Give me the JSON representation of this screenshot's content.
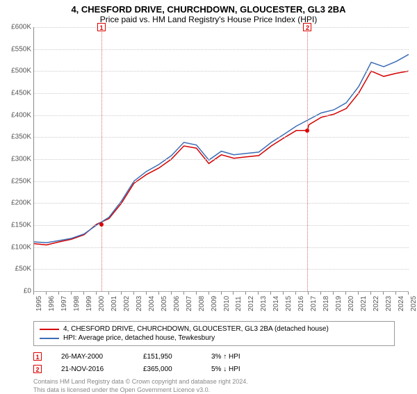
{
  "header": {
    "title": "4, CHESFORD DRIVE, CHURCHDOWN, GLOUCESTER, GL3 2BA",
    "subtitle": "Price paid vs. HM Land Registry's House Price Index (HPI)"
  },
  "chart": {
    "type": "line",
    "ylim": [
      0,
      600000
    ],
    "ytick_step": 50000,
    "y_prefix": "£",
    "y_suffix": "K",
    "xlim": [
      1995,
      2025
    ],
    "xticks": [
      1995,
      1996,
      1997,
      1998,
      1999,
      2000,
      2001,
      2002,
      2003,
      2004,
      2005,
      2006,
      2007,
      2008,
      2009,
      2010,
      2011,
      2012,
      2013,
      2014,
      2015,
      2016,
      2017,
      2018,
      2019,
      2020,
      2021,
      2022,
      2023,
      2024,
      2025
    ],
    "background_color": "#ffffff",
    "grid_color": "#cccccc",
    "axis_color": "#888888",
    "label_color": "#555555",
    "label_fontsize": 10,
    "series": [
      {
        "name": "4, CHESFORD DRIVE, CHURCHDOWN, GLOUCESTER, GL3 2BA (detached house)",
        "color": "#d40000",
        "line_width": 1.5,
        "points": [
          [
            1995,
            108000
          ],
          [
            1996,
            105000
          ],
          [
            1997,
            112000
          ],
          [
            1998,
            118000
          ],
          [
            1999,
            128000
          ],
          [
            2000,
            151950
          ],
          [
            2001,
            165000
          ],
          [
            2002,
            200000
          ],
          [
            2003,
            245000
          ],
          [
            2004,
            265000
          ],
          [
            2005,
            280000
          ],
          [
            2006,
            300000
          ],
          [
            2007,
            330000
          ],
          [
            2008,
            325000
          ],
          [
            2009,
            290000
          ],
          [
            2010,
            310000
          ],
          [
            2011,
            302000
          ],
          [
            2012,
            305000
          ],
          [
            2013,
            308000
          ],
          [
            2014,
            330000
          ],
          [
            2015,
            348000
          ],
          [
            2016,
            365000
          ],
          [
            2016.9,
            365000
          ],
          [
            2017,
            378000
          ],
          [
            2018,
            395000
          ],
          [
            2019,
            402000
          ],
          [
            2020,
            415000
          ],
          [
            2021,
            450000
          ],
          [
            2022,
            500000
          ],
          [
            2023,
            488000
          ],
          [
            2024,
            495000
          ],
          [
            2025,
            500000
          ]
        ]
      },
      {
        "name": "HPI: Average price, detached house, Tewkesbury",
        "color": "#3b6db5",
        "line_width": 1.5,
        "points": [
          [
            1995,
            112000
          ],
          [
            1996,
            110000
          ],
          [
            1997,
            115000
          ],
          [
            1998,
            120000
          ],
          [
            1999,
            130000
          ],
          [
            2000,
            150000
          ],
          [
            2001,
            168000
          ],
          [
            2002,
            205000
          ],
          [
            2003,
            250000
          ],
          [
            2004,
            272000
          ],
          [
            2005,
            288000
          ],
          [
            2006,
            308000
          ],
          [
            2007,
            338000
          ],
          [
            2008,
            332000
          ],
          [
            2009,
            298000
          ],
          [
            2010,
            318000
          ],
          [
            2011,
            310000
          ],
          [
            2012,
            313000
          ],
          [
            2013,
            316000
          ],
          [
            2014,
            338000
          ],
          [
            2015,
            356000
          ],
          [
            2016,
            375000
          ],
          [
            2017,
            390000
          ],
          [
            2018,
            405000
          ],
          [
            2019,
            412000
          ],
          [
            2020,
            428000
          ],
          [
            2021,
            465000
          ],
          [
            2022,
            520000
          ],
          [
            2023,
            510000
          ],
          [
            2024,
            522000
          ],
          [
            2025,
            538000
          ]
        ]
      }
    ],
    "markers": [
      {
        "id": "1",
        "x": 2000.4,
        "y": 151950,
        "box_top_offset": -6
      },
      {
        "id": "2",
        "x": 2016.9,
        "y": 365000,
        "box_top_offset": -6
      }
    ]
  },
  "legend": {
    "items": [
      {
        "color": "#d40000",
        "label": "4, CHESFORD DRIVE, CHURCHDOWN, GLOUCESTER, GL3 2BA (detached house)"
      },
      {
        "color": "#3b6db5",
        "label": "HPI: Average price, detached house, Tewkesbury"
      }
    ]
  },
  "events": [
    {
      "id": "1",
      "date": "26-MAY-2000",
      "price": "£151,950",
      "note": "3% ↑ HPI"
    },
    {
      "id": "2",
      "date": "21-NOV-2016",
      "price": "£365,000",
      "note": "5% ↓ HPI"
    }
  ],
  "footnote": {
    "line1": "Contains HM Land Registry data © Crown copyright and database right 2024.",
    "line2": "This data is licensed under the Open Government Licence v3.0."
  }
}
